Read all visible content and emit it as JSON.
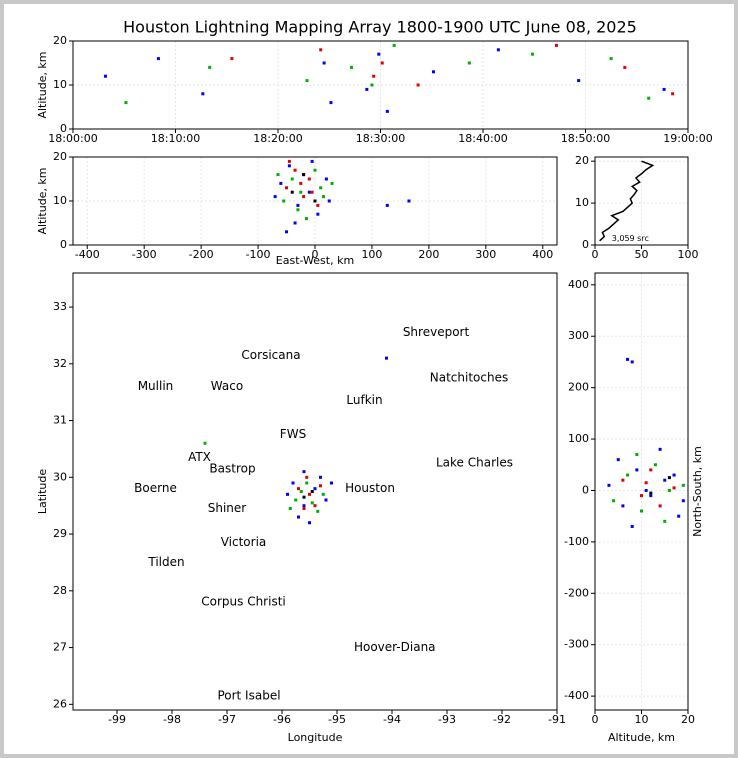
{
  "chart_data": [
    {
      "type": "scatter",
      "title": "Houston Lightning Mapping Array 1800-1900 UTC June 08, 2025",
      "ylabel": "Altitude, km",
      "xlim": [
        "18:00:00",
        "19:00:00"
      ],
      "xticks": [
        "18:00:00",
        "18:10:00",
        "18:20:00",
        "18:30:00",
        "18:40:00",
        "18:50:00",
        "19:00:00"
      ],
      "ylim": [
        0,
        20
      ],
      "yticks": [
        0,
        10,
        20
      ],
      "grid": true,
      "series": [
        {
          "color": "#0000ff",
          "x": [
            "18:03:10",
            "18:08:20",
            "18:12:40",
            "18:24:30",
            "18:28:40",
            "18:29:50",
            "18:35:10",
            "18:41:30",
            "18:49:20",
            "18:57:40",
            "18:25:10",
            "18:30:40"
          ],
          "y": [
            12,
            16,
            8,
            15,
            9,
            17,
            13,
            18,
            11,
            9,
            6,
            4
          ]
        },
        {
          "color": "#00b000",
          "x": [
            "18:05:10",
            "18:13:20",
            "18:22:50",
            "18:27:10",
            "18:31:20",
            "18:38:40",
            "18:44:50",
            "18:52:30",
            "18:56:10",
            "18:29:10"
          ],
          "y": [
            6,
            14,
            11,
            14,
            19,
            15,
            17,
            16,
            7,
            10
          ]
        },
        {
          "color": "#e00000",
          "x": [
            "18:15:30",
            "18:24:10",
            "18:29:20",
            "18:33:40",
            "18:47:10",
            "18:53:50",
            "18:58:30",
            "18:30:10"
          ],
          "y": [
            16,
            18,
            12,
            10,
            19,
            14,
            8,
            15
          ]
        }
      ]
    },
    {
      "type": "scatter",
      "xlabel": "East-West, km",
      "ylabel": "Altitude, km",
      "xlim": [
        -425,
        425
      ],
      "xticks": [
        -400,
        -300,
        -200,
        -100,
        0,
        100,
        200,
        300,
        400
      ],
      "ylim": [
        0,
        20
      ],
      "yticks": [
        0,
        10,
        20
      ],
      "grid": true,
      "series": [
        {
          "color": "#0000ff",
          "x": [
            -60,
            -45,
            -30,
            -20,
            -10,
            5,
            20,
            -70,
            -35,
            -5,
            25,
            127,
            165,
            -50
          ],
          "y": [
            14,
            18,
            9,
            16,
            12,
            7,
            15,
            11,
            5,
            19,
            10,
            9,
            10,
            3
          ]
        },
        {
          "color": "#00b000",
          "x": [
            -55,
            -40,
            -25,
            -15,
            0,
            10,
            -65,
            -30,
            15,
            30
          ],
          "y": [
            10,
            15,
            12,
            6,
            17,
            13,
            16,
            8,
            11,
            14
          ]
        },
        {
          "color": "#e00000",
          "x": [
            -50,
            -35,
            -20,
            -10,
            5,
            -45,
            -25,
            -5
          ],
          "y": [
            13,
            17,
            11,
            15,
            9,
            19,
            14,
            12
          ]
        },
        {
          "color": "#000000",
          "x": [
            -40,
            -20,
            0
          ],
          "y": [
            12,
            16,
            10
          ]
        }
      ]
    },
    {
      "type": "line",
      "xlim": [
        0,
        100
      ],
      "xticks": [
        0,
        50,
        100
      ],
      "ylim": [
        0,
        21
      ],
      "yticks": [
        0,
        10,
        20
      ],
      "grid": true,
      "color": "#000000",
      "x": [
        5,
        10,
        8,
        15,
        20,
        25,
        18,
        30,
        35,
        40,
        38,
        42,
        45,
        40,
        48,
        44,
        50,
        55,
        62,
        50
      ],
      "y": [
        1,
        2,
        3,
        4,
        5,
        6,
        7,
        8,
        9,
        10,
        11,
        12,
        13,
        14,
        15,
        16,
        17,
        18,
        19,
        20
      ],
      "annotations": [
        {
          "text": "3,059 src",
          "x": 18,
          "y": 1.5
        }
      ]
    },
    {
      "type": "scatter",
      "xlabel": "Longitude",
      "ylabel": "Latitude",
      "xlim": [
        -99.8,
        -91
      ],
      "xticks": [
        -99,
        -98,
        -97,
        -96,
        -95,
        -94,
        -93,
        -92,
        -91
      ],
      "ylim": [
        25.9,
        33.6
      ],
      "yticks": [
        26,
        27,
        28,
        29,
        30,
        31,
        32,
        33
      ],
      "grid": false,
      "series": [
        {
          "color": "#0000ff",
          "x": [
            -95.8,
            -95.6,
            -95.4,
            -95.2,
            -95.7,
            -95.3,
            -95.9,
            -95.5,
            -95.1,
            -94.1,
            -95.6
          ],
          "y": [
            29.9,
            29.5,
            29.8,
            29.6,
            29.3,
            30.0,
            29.7,
            29.2,
            29.9,
            32.1,
            30.1
          ]
        },
        {
          "color": "#00b000",
          "x": [
            -95.75,
            -95.55,
            -95.35,
            -95.65,
            -95.45,
            -95.25,
            -95.85,
            -97.4
          ],
          "y": [
            29.6,
            29.9,
            29.4,
            29.75,
            29.55,
            29.7,
            29.45,
            30.6
          ]
        },
        {
          "color": "#e00000",
          "x": [
            -95.7,
            -95.5,
            -95.4,
            -95.6,
            -95.3,
            -95.55
          ],
          "y": [
            29.8,
            29.7,
            29.5,
            29.45,
            29.85,
            30.0
          ]
        },
        {
          "color": "#000000",
          "x": [
            -95.6,
            -95.45
          ],
          "y": [
            29.65,
            29.75
          ]
        }
      ],
      "annotations": [
        {
          "text": "Shreveport",
          "x": -93.2,
          "y": 32.55,
          "color": "#000000"
        },
        {
          "text": "Corsicana",
          "x": -96.2,
          "y": 32.15,
          "color": "#000000"
        },
        {
          "text": "Natchitoches",
          "x": -92.6,
          "y": 31.75,
          "color": "#000000"
        },
        {
          "text": "Mullin",
          "x": -98.3,
          "y": 31.6,
          "color": "#f08040"
        },
        {
          "text": "Waco",
          "x": -97.0,
          "y": 31.6,
          "color": "#000000"
        },
        {
          "text": "Lufkin",
          "x": -94.5,
          "y": 31.35,
          "color": "#000000"
        },
        {
          "text": "FWS",
          "x": -95.8,
          "y": 30.75,
          "color": "#000000"
        },
        {
          "text": "ATX",
          "x": -97.5,
          "y": 30.35,
          "color": "#f08040"
        },
        {
          "text": "Bastrop",
          "x": -96.9,
          "y": 30.15,
          "color": "#000000"
        },
        {
          "text": "Lake Charles",
          "x": -92.5,
          "y": 30.25,
          "color": "#000000"
        },
        {
          "text": "Houston",
          "x": -94.4,
          "y": 29.8,
          "color": "#e0a020"
        },
        {
          "text": "Boerne",
          "x": -98.3,
          "y": 29.8,
          "color": "#000000"
        },
        {
          "text": "Shiner",
          "x": -97.0,
          "y": 29.45,
          "color": "#000000"
        },
        {
          "text": "Victoria",
          "x": -96.7,
          "y": 28.85,
          "color": "#000000"
        },
        {
          "text": "Tilden",
          "x": -98.1,
          "y": 28.5,
          "color": "#000000"
        },
        {
          "text": "Corpus Christi",
          "x": -96.7,
          "y": 27.8,
          "color": "#000000"
        },
        {
          "text": "Hoover-Diana",
          "x": -93.95,
          "y": 27.0,
          "color": "#0000ff"
        },
        {
          "text": "Port Isabel",
          "x": -96.6,
          "y": 26.15,
          "color": "#000000"
        }
      ]
    },
    {
      "type": "scatter",
      "xlabel": "Altitude, km",
      "ylabel": "North-South, km",
      "xlim": [
        0,
        20
      ],
      "xticks": [
        0,
        10,
        20
      ],
      "ylim": [
        -427,
        423
      ],
      "yticks": [
        -400,
        -300,
        -200,
        -100,
        0,
        100,
        200,
        300,
        400
      ],
      "grid": true,
      "series": [
        {
          "color": "#0000ff",
          "x": [
            3,
            6,
            9,
            12,
            15,
            18,
            5,
            11,
            17,
            8,
            14,
            19,
            7,
            8
          ],
          "y": [
            10,
            -30,
            40,
            -10,
            20,
            -50,
            60,
            0,
            30,
            -70,
            80,
            -20,
            255,
            250
          ]
        },
        {
          "color": "#00b000",
          "x": [
            4,
            7,
            10,
            13,
            16,
            19,
            9,
            15
          ],
          "y": [
            -20,
            30,
            -40,
            50,
            0,
            10,
            70,
            -60
          ]
        },
        {
          "color": "#e00000",
          "x": [
            6,
            10,
            12,
            14,
            17,
            11
          ],
          "y": [
            20,
            -10,
            40,
            -30,
            5,
            15
          ]
        },
        {
          "color": "#000000",
          "x": [
            12,
            16
          ],
          "y": [
            -5,
            25
          ]
        }
      ]
    }
  ]
}
